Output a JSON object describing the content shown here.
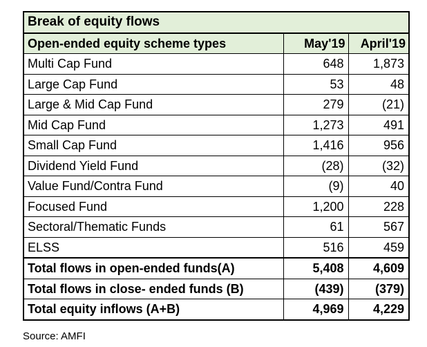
{
  "table": {
    "title": "Break of equity flows",
    "headers": [
      "Open-ended equity scheme types",
      "May'19",
      "April'19"
    ],
    "rows": [
      [
        "Multi Cap Fund",
        "648",
        "1,873"
      ],
      [
        "Large Cap Fund",
        "53",
        "48"
      ],
      [
        "Large & Mid Cap Fund",
        "279",
        "(21)"
      ],
      [
        "Mid Cap Fund",
        "1,273",
        "491"
      ],
      [
        "Small Cap Fund",
        "1,416",
        "956"
      ],
      [
        "Dividend Yield Fund",
        "(28)",
        "(32)"
      ],
      [
        "Value Fund/Contra Fund",
        "(9)",
        "40"
      ],
      [
        "Focused Fund",
        "1,200",
        "228"
      ],
      [
        "Sectoral/Thematic Funds",
        "61",
        "567"
      ],
      [
        "ELSS",
        "516",
        "459"
      ]
    ],
    "totals": [
      [
        "Total flows in open-ended funds(A)",
        "5,408",
        "4,609"
      ],
      [
        "Total flows in close- ended funds (B)",
        "(439)",
        "(379)"
      ],
      [
        "Total equity inflows (A+B)",
        "4,969",
        "4,229"
      ]
    ]
  },
  "source": "Source: AMFI",
  "colors": {
    "header_bg": "#e2efd9",
    "border": "#000000"
  }
}
